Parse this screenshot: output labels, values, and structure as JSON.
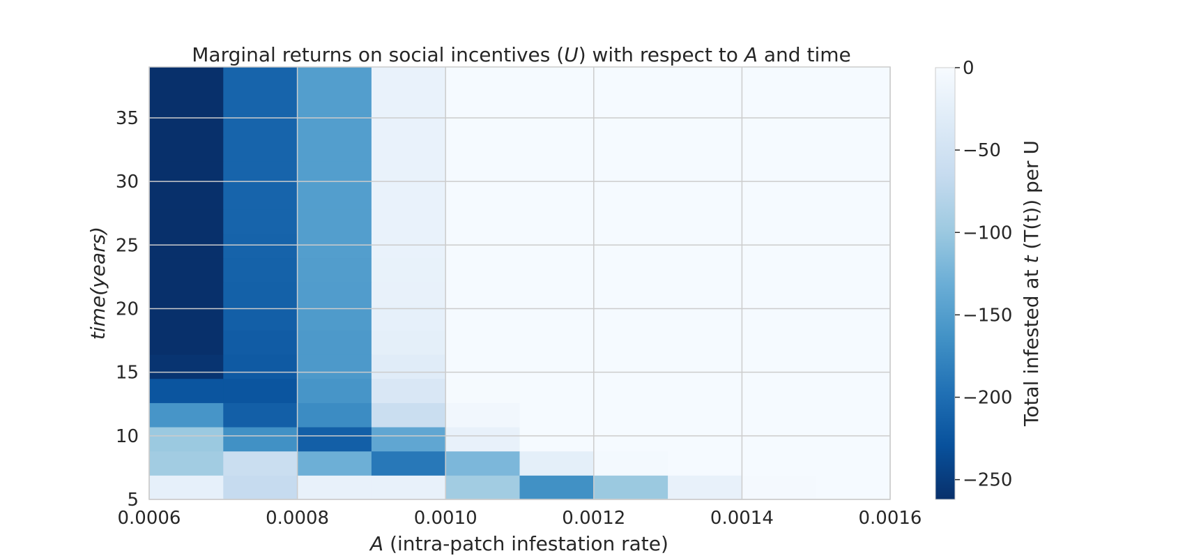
{
  "chart_data": {
    "type": "heatmap",
    "title": {
      "prefix": "Marginal returns on social incentives (",
      "u": "U",
      "middle": ") with respect to ",
      "a": "A",
      "suffix": " and time"
    },
    "xlabel": {
      "a": "A",
      "rest": " (intra-patch infestation rate)"
    },
    "ylabel": {
      "time": "time",
      "years": "(years)"
    },
    "colorbar_label": {
      "prefix": "Total infested at ",
      "t": "t",
      "suffix": " (T(t)) per U"
    },
    "colormap": "Blues_r",
    "xlim": [
      0.0006,
      0.0016
    ],
    "ylim": [
      5,
      39
    ],
    "clim": [
      -262,
      0
    ],
    "x_edges": [
      0.0006,
      0.0007,
      0.0008,
      0.0009,
      0.001,
      0.0011,
      0.0012,
      0.0013,
      0.0014,
      0.0015,
      0.0016
    ],
    "y_edges": [
      5,
      6.9,
      8.8,
      10.7,
      12.6,
      14.5,
      16.4,
      18.3,
      20.2,
      22.1,
      24,
      25.9,
      27.8,
      29.7,
      31.6,
      33.5,
      35.4,
      37.3,
      39.2
    ],
    "x_ticks": [
      "0.0006",
      "0.0008",
      "0.0010",
      "0.0012",
      "0.0014",
      "0.0016"
    ],
    "x_tick_values": [
      0.0006,
      0.0008,
      0.001,
      0.0012,
      0.0014,
      0.0016
    ],
    "y_ticks": [
      "5",
      "10",
      "15",
      "20",
      "25",
      "30",
      "35"
    ],
    "y_tick_values": [
      5,
      10,
      15,
      20,
      25,
      30,
      35
    ],
    "colorbar_ticks": [
      "0",
      "−50",
      "−100",
      "−150",
      "−200",
      "−250"
    ],
    "colorbar_tick_values": [
      0,
      -50,
      -100,
      -150,
      -200,
      -250
    ],
    "grid": true,
    "values": [
      [
        -22,
        -65,
        -20,
        -20,
        -95,
        -165,
        -100,
        -20,
        -4,
        -2
      ],
      [
        -95,
        -60,
        -130,
        -190,
        -120,
        -25,
        -5,
        -2,
        -2,
        -2
      ],
      [
        -100,
        -165,
        -215,
        -140,
        -20,
        -2,
        -2,
        -2,
        -2,
        -2
      ],
      [
        -160,
        -215,
        -170,
        -60,
        -8,
        -2,
        -2,
        -2,
        -2,
        -2
      ],
      [
        -225,
        -225,
        -160,
        -40,
        -3,
        -2,
        -2,
        -2,
        -2,
        -2
      ],
      [
        -258,
        -220,
        -155,
        -30,
        -2,
        -2,
        -2,
        -2,
        -2,
        -2
      ],
      [
        -262,
        -218,
        -155,
        -25,
        -2,
        -2,
        -2,
        -2,
        -2,
        -2
      ],
      [
        -262,
        -215,
        -153,
        -22,
        -2,
        -2,
        -2,
        -2,
        -2,
        -2
      ],
      [
        -262,
        -213,
        -152,
        -20,
        -2,
        -2,
        -2,
        -2,
        -2,
        -2
      ],
      [
        -262,
        -212,
        -151,
        -19,
        -2,
        -2,
        -2,
        -2,
        -2,
        -2
      ],
      [
        -262,
        -211,
        -150,
        -18,
        -2,
        -2,
        -2,
        -2,
        -2,
        -2
      ],
      [
        -262,
        -210,
        -150,
        -18,
        -2,
        -2,
        -2,
        -2,
        -2,
        -2
      ],
      [
        -262,
        -210,
        -150,
        -18,
        -2,
        -2,
        -2,
        -2,
        -2,
        -2
      ],
      [
        -262,
        -210,
        -150,
        -18,
        -2,
        -2,
        -2,
        -2,
        -2,
        -2
      ],
      [
        -262,
        -210,
        -150,
        -18,
        -2,
        -2,
        -2,
        -2,
        -2,
        -2
      ],
      [
        -262,
        -210,
        -150,
        -18,
        -2,
        -2,
        -2,
        -2,
        -2,
        -2
      ],
      [
        -262,
        -210,
        -150,
        -18,
        -2,
        -2,
        -2,
        -2,
        -2,
        -2
      ],
      [
        -262,
        -210,
        -150,
        -18,
        -2,
        -2,
        -2,
        -2,
        -2,
        -2
      ]
    ]
  }
}
